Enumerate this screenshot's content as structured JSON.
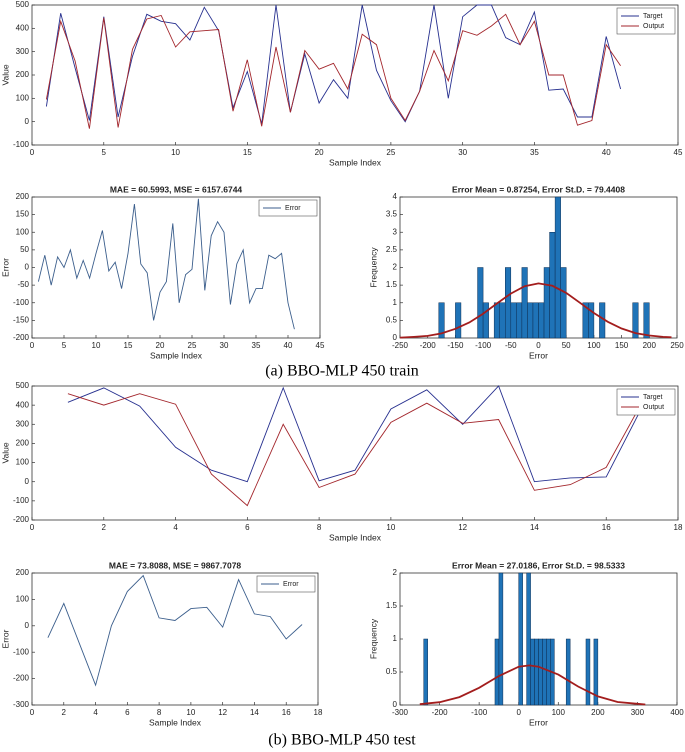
{
  "captions": [
    "(a) BBO-MLP 450 train",
    "(b) BBO-MLP 450 test"
  ],
  "chart_data": [
    {
      "type": "line",
      "xlabel": "Sample Index",
      "ylabel": "Value",
      "legend": "northeast",
      "x": [
        1,
        2,
        3,
        4,
        5,
        6,
        7,
        8,
        9,
        10,
        11,
        12,
        13,
        14,
        15,
        16,
        17,
        18,
        19,
        20,
        21,
        22,
        23,
        24,
        25,
        26,
        27,
        28,
        29,
        30,
        31,
        32,
        33,
        34,
        35,
        36,
        37,
        38,
        39,
        40,
        41
      ],
      "series": [
        {
          "name": "Target",
          "color": "#27308f",
          "values": [
            65,
            465,
            230,
            5,
            450,
            20,
            280,
            460,
            430,
            420,
            350,
            490,
            390,
            60,
            215,
            -10,
            500,
            40,
            290,
            80,
            180,
            100,
            500,
            220,
            90,
            0,
            130,
            500,
            100,
            450,
            500,
            500,
            360,
            330,
            470,
            135,
            140,
            20,
            20,
            365,
            140
          ]
        },
        {
          "name": "Output",
          "color": "#a3262c",
          "values": [
            95,
            430,
            260,
            -30,
            445,
            -25,
            310,
            440,
            455,
            320,
            385,
            390,
            395,
            45,
            265,
            -20,
            320,
            40,
            305,
            225,
            250,
            140,
            375,
            330,
            100,
            5,
            130,
            305,
            175,
            390,
            370,
            410,
            460,
            330,
            430,
            200,
            200,
            -15,
            5,
            330,
            240
          ]
        }
      ],
      "xlim": [
        0,
        45
      ],
      "xticks": [
        0,
        5,
        10,
        15,
        20,
        25,
        30,
        35,
        40,
        45
      ],
      "ylim": [
        -100,
        500
      ],
      "yticks": [
        -100,
        0,
        100,
        200,
        300,
        400,
        500
      ]
    },
    {
      "type": "line",
      "title": "MAE = 60.5993, MSE = 6157.6744",
      "xlabel": "Sample Index",
      "ylabel": "Error",
      "legend": "northeast",
      "x": [
        1,
        2,
        3,
        4,
        5,
        6,
        7,
        8,
        9,
        10,
        11,
        12,
        13,
        14,
        15,
        16,
        17,
        18,
        19,
        20,
        21,
        22,
        23,
        24,
        25,
        26,
        27,
        28,
        29,
        30,
        31,
        32,
        33,
        34,
        35,
        36,
        37,
        38,
        39,
        40,
        41
      ],
      "series": [
        {
          "name": "Error",
          "color": "#3b5e8c",
          "values": [
            -40,
            35,
            -50,
            30,
            0,
            50,
            -30,
            20,
            -30,
            40,
            105,
            -10,
            15,
            -60,
            40,
            180,
            10,
            -15,
            -150,
            -70,
            -40,
            125,
            -100,
            -20,
            -5,
            195,
            -65,
            90,
            130,
            100,
            -105,
            10,
            50,
            -100,
            -60,
            -60,
            35,
            25,
            40,
            -100,
            -175
          ]
        }
      ],
      "xlim": [
        0,
        45
      ],
      "xticks": [
        0,
        5,
        10,
        15,
        20,
        25,
        30,
        35,
        40,
        45
      ],
      "ylim": [
        -200,
        200
      ],
      "yticks": [
        -200,
        -150,
        -100,
        -50,
        0,
        50,
        100,
        150,
        200
      ]
    },
    {
      "type": "histogram",
      "title": "Error Mean = 0.87254, Error St.D. = 79.4408",
      "xlabel": "Error",
      "ylabel": "Frequency",
      "bins": [
        -190,
        -180,
        -170,
        -160,
        -150,
        -140,
        -130,
        -120,
        -110,
        -100,
        -90,
        -80,
        -70,
        -60,
        -50,
        -40,
        -30,
        -20,
        -10,
        0,
        10,
        20,
        30,
        40,
        50,
        60,
        70,
        80,
        90,
        100,
        110,
        120,
        130,
        140,
        150,
        160,
        170,
        180,
        190,
        200
      ],
      "values": [
        0,
        1,
        0,
        0,
        1,
        0,
        0,
        0,
        2,
        1,
        0,
        1,
        1,
        2,
        1,
        1,
        2,
        1,
        1,
        1,
        2,
        3,
        4,
        2,
        0,
        0,
        0,
        1,
        1,
        0,
        1,
        0,
        0,
        0,
        0,
        0,
        1,
        0,
        1
      ],
      "color": "#1f73b7",
      "fit_x": [
        -250,
        -225,
        -200,
        -175,
        -150,
        -125,
        -100,
        -75,
        -50,
        -25,
        0,
        25,
        50,
        75,
        100,
        125,
        150,
        175,
        200,
        225,
        240
      ],
      "fit_y": [
        0.01,
        0.03,
        0.06,
        0.13,
        0.26,
        0.44,
        0.69,
        0.98,
        1.26,
        1.47,
        1.55,
        1.48,
        1.28,
        1.0,
        0.71,
        0.46,
        0.27,
        0.14,
        0.07,
        0.03,
        0.02
      ],
      "fit_color": "#a31d1d",
      "xlim": [
        -250,
        250
      ],
      "xticks": [
        -250,
        -200,
        -150,
        -100,
        -50,
        0,
        50,
        100,
        150,
        200,
        250
      ],
      "ylim": [
        0,
        4
      ],
      "yticks": [
        0,
        0.5,
        1,
        1.5,
        2,
        2.5,
        3,
        3.5,
        4
      ]
    },
    {
      "type": "line",
      "xlabel": "Sample Index",
      "ylabel": "Value",
      "legend": "northeast",
      "x": [
        1,
        2,
        3,
        4,
        5,
        6,
        7,
        8,
        9,
        10,
        11,
        12,
        13,
        14,
        15,
        16,
        17
      ],
      "series": [
        {
          "name": "Target",
          "color": "#27308f",
          "values": [
            415,
            490,
            395,
            180,
            60,
            0,
            490,
            5,
            60,
            380,
            480,
            300,
            500,
            0,
            20,
            25,
            390
          ]
        },
        {
          "name": "Output",
          "color": "#a3262c",
          "values": [
            460,
            400,
            460,
            405,
            40,
            -125,
            300,
            -30,
            40,
            310,
            410,
            305,
            325,
            -45,
            -15,
            75,
            415
          ]
        }
      ],
      "xlim": [
        0,
        18
      ],
      "xticks": [
        0,
        2,
        4,
        6,
        8,
        10,
        12,
        14,
        16,
        18
      ],
      "ylim": [
        -200,
        500
      ],
      "yticks": [
        -200,
        -100,
        0,
        100,
        200,
        300,
        400,
        500
      ]
    },
    {
      "type": "line",
      "title": "MAE = 73.8088, MSE = 9867.7078",
      "xlabel": "Sample Index",
      "ylabel": "Error",
      "legend": "northeast",
      "x": [
        1,
        2,
        3,
        4,
        5,
        6,
        7,
        8,
        9,
        10,
        11,
        12,
        13,
        14,
        15,
        16,
        17
      ],
      "series": [
        {
          "name": "Error",
          "color": "#3b5e8c",
          "values": [
            -45,
            85,
            -70,
            -225,
            0,
            130,
            190,
            30,
            20,
            65,
            70,
            -5,
            175,
            45,
            35,
            -50,
            5
          ]
        }
      ],
      "xlim": [
        0,
        18
      ],
      "xticks": [
        0,
        2,
        4,
        6,
        8,
        10,
        12,
        14,
        16,
        18
      ],
      "ylim": [
        -300,
        200
      ],
      "yticks": [
        -300,
        -200,
        -100,
        0,
        100,
        200
      ]
    },
    {
      "type": "histogram",
      "title": "Error Mean = 27.0186, Error St.D. = 98.5333",
      "xlabel": "Error",
      "ylabel": "Frequency",
      "bins": [
        -240,
        -230,
        -220,
        -210,
        -200,
        -190,
        -180,
        -170,
        -160,
        -150,
        -140,
        -130,
        -120,
        -110,
        -100,
        -90,
        -80,
        -70,
        -60,
        -50,
        -40,
        -30,
        -20,
        -10,
        0,
        10,
        20,
        30,
        40,
        50,
        60,
        70,
        80,
        90,
        100,
        110,
        120,
        130,
        140,
        150,
        160,
        170,
        180,
        190,
        200
      ],
      "values": [
        1,
        0,
        0,
        0,
        0,
        0,
        0,
        0,
        0,
        0,
        0,
        0,
        0,
        0,
        0,
        0,
        0,
        0,
        1,
        2,
        0,
        0,
        0,
        0,
        2,
        0,
        2,
        1,
        1,
        1,
        1,
        1,
        1,
        0,
        0,
        0,
        1,
        0,
        0,
        0,
        0,
        1,
        0,
        1
      ],
      "color": "#1f73b7",
      "fit_x": [
        -250,
        -200,
        -150,
        -100,
        -50,
        0,
        27,
        50,
        100,
        150,
        200,
        250,
        320
      ],
      "fit_y": [
        0.012,
        0.042,
        0.12,
        0.26,
        0.44,
        0.58,
        0.6,
        0.58,
        0.46,
        0.28,
        0.13,
        0.046,
        0.007
      ],
      "fit_color": "#a31d1d",
      "xlim": [
        -300,
        400
      ],
      "xticks": [
        -300,
        -200,
        -100,
        0,
        100,
        200,
        300,
        400
      ],
      "ylim": [
        0,
        2
      ],
      "yticks": [
        0,
        0.5,
        1,
        1.5,
        2
      ]
    }
  ]
}
